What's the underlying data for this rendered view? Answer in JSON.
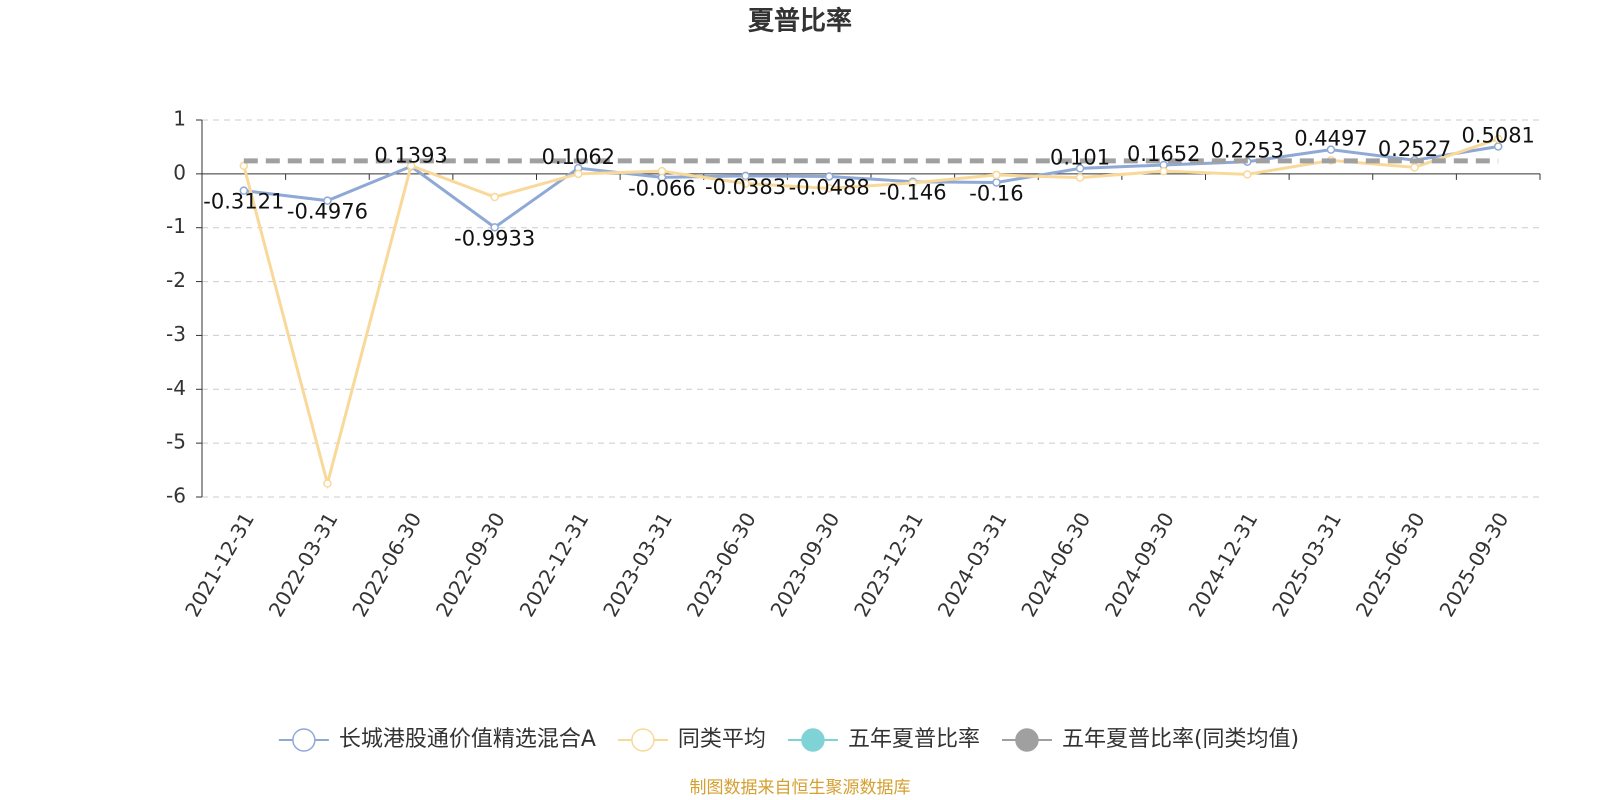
{
  "chart_data": {
    "type": "line",
    "title": "夏普比率",
    "categories": [
      "2021-12-31",
      "2022-03-31",
      "2022-06-30",
      "2022-09-30",
      "2022-12-31",
      "2023-03-31",
      "2023-06-30",
      "2023-09-30",
      "2023-12-31",
      "2024-03-31",
      "2024-06-30",
      "2024-09-30",
      "2024-12-31",
      "2025-03-31",
      "2025-06-30",
      "2025-09-30"
    ],
    "series": [
      {
        "name": "长城港股通价值精选混合A",
        "color": "#8fa9d6",
        "values": [
          -0.3121,
          -0.4976,
          0.1393,
          -0.9933,
          0.1062,
          -0.066,
          -0.0383,
          -0.0488,
          -0.146,
          -0.16,
          0.101,
          0.1652,
          0.2253,
          0.4497,
          0.2527,
          0.5081
        ]
      },
      {
        "name": "同类平均",
        "color": "#f9d99a",
        "values": [
          0.15,
          -5.75,
          0.15,
          -0.43,
          0.0,
          0.05,
          -0.18,
          -0.27,
          -0.17,
          -0.02,
          -0.07,
          0.05,
          -0.01,
          0.25,
          0.12,
          0.65
        ]
      },
      {
        "name": "五年夏普比率",
        "color": "#7fd3d6",
        "values": [
          null,
          null,
          null,
          null,
          null,
          null,
          null,
          null,
          null,
          null,
          null,
          null,
          null,
          null,
          null,
          null
        ]
      },
      {
        "name": "五年夏普比率(同类均值)",
        "color": "#a0a0a0",
        "dashed": true,
        "values": [
          0.24,
          0.24,
          0.24,
          0.24,
          0.24,
          0.24,
          0.24,
          0.24,
          0.24,
          0.24,
          0.24,
          0.24,
          0.24,
          0.24,
          0.24,
          0.24
        ]
      }
    ],
    "ylim": [
      -6,
      1
    ],
    "yticks": [
      -6,
      -5,
      -4,
      -3,
      -2,
      -1,
      0,
      1
    ],
    "grid": true,
    "source": "制图数据来自恒生聚源数据库"
  }
}
